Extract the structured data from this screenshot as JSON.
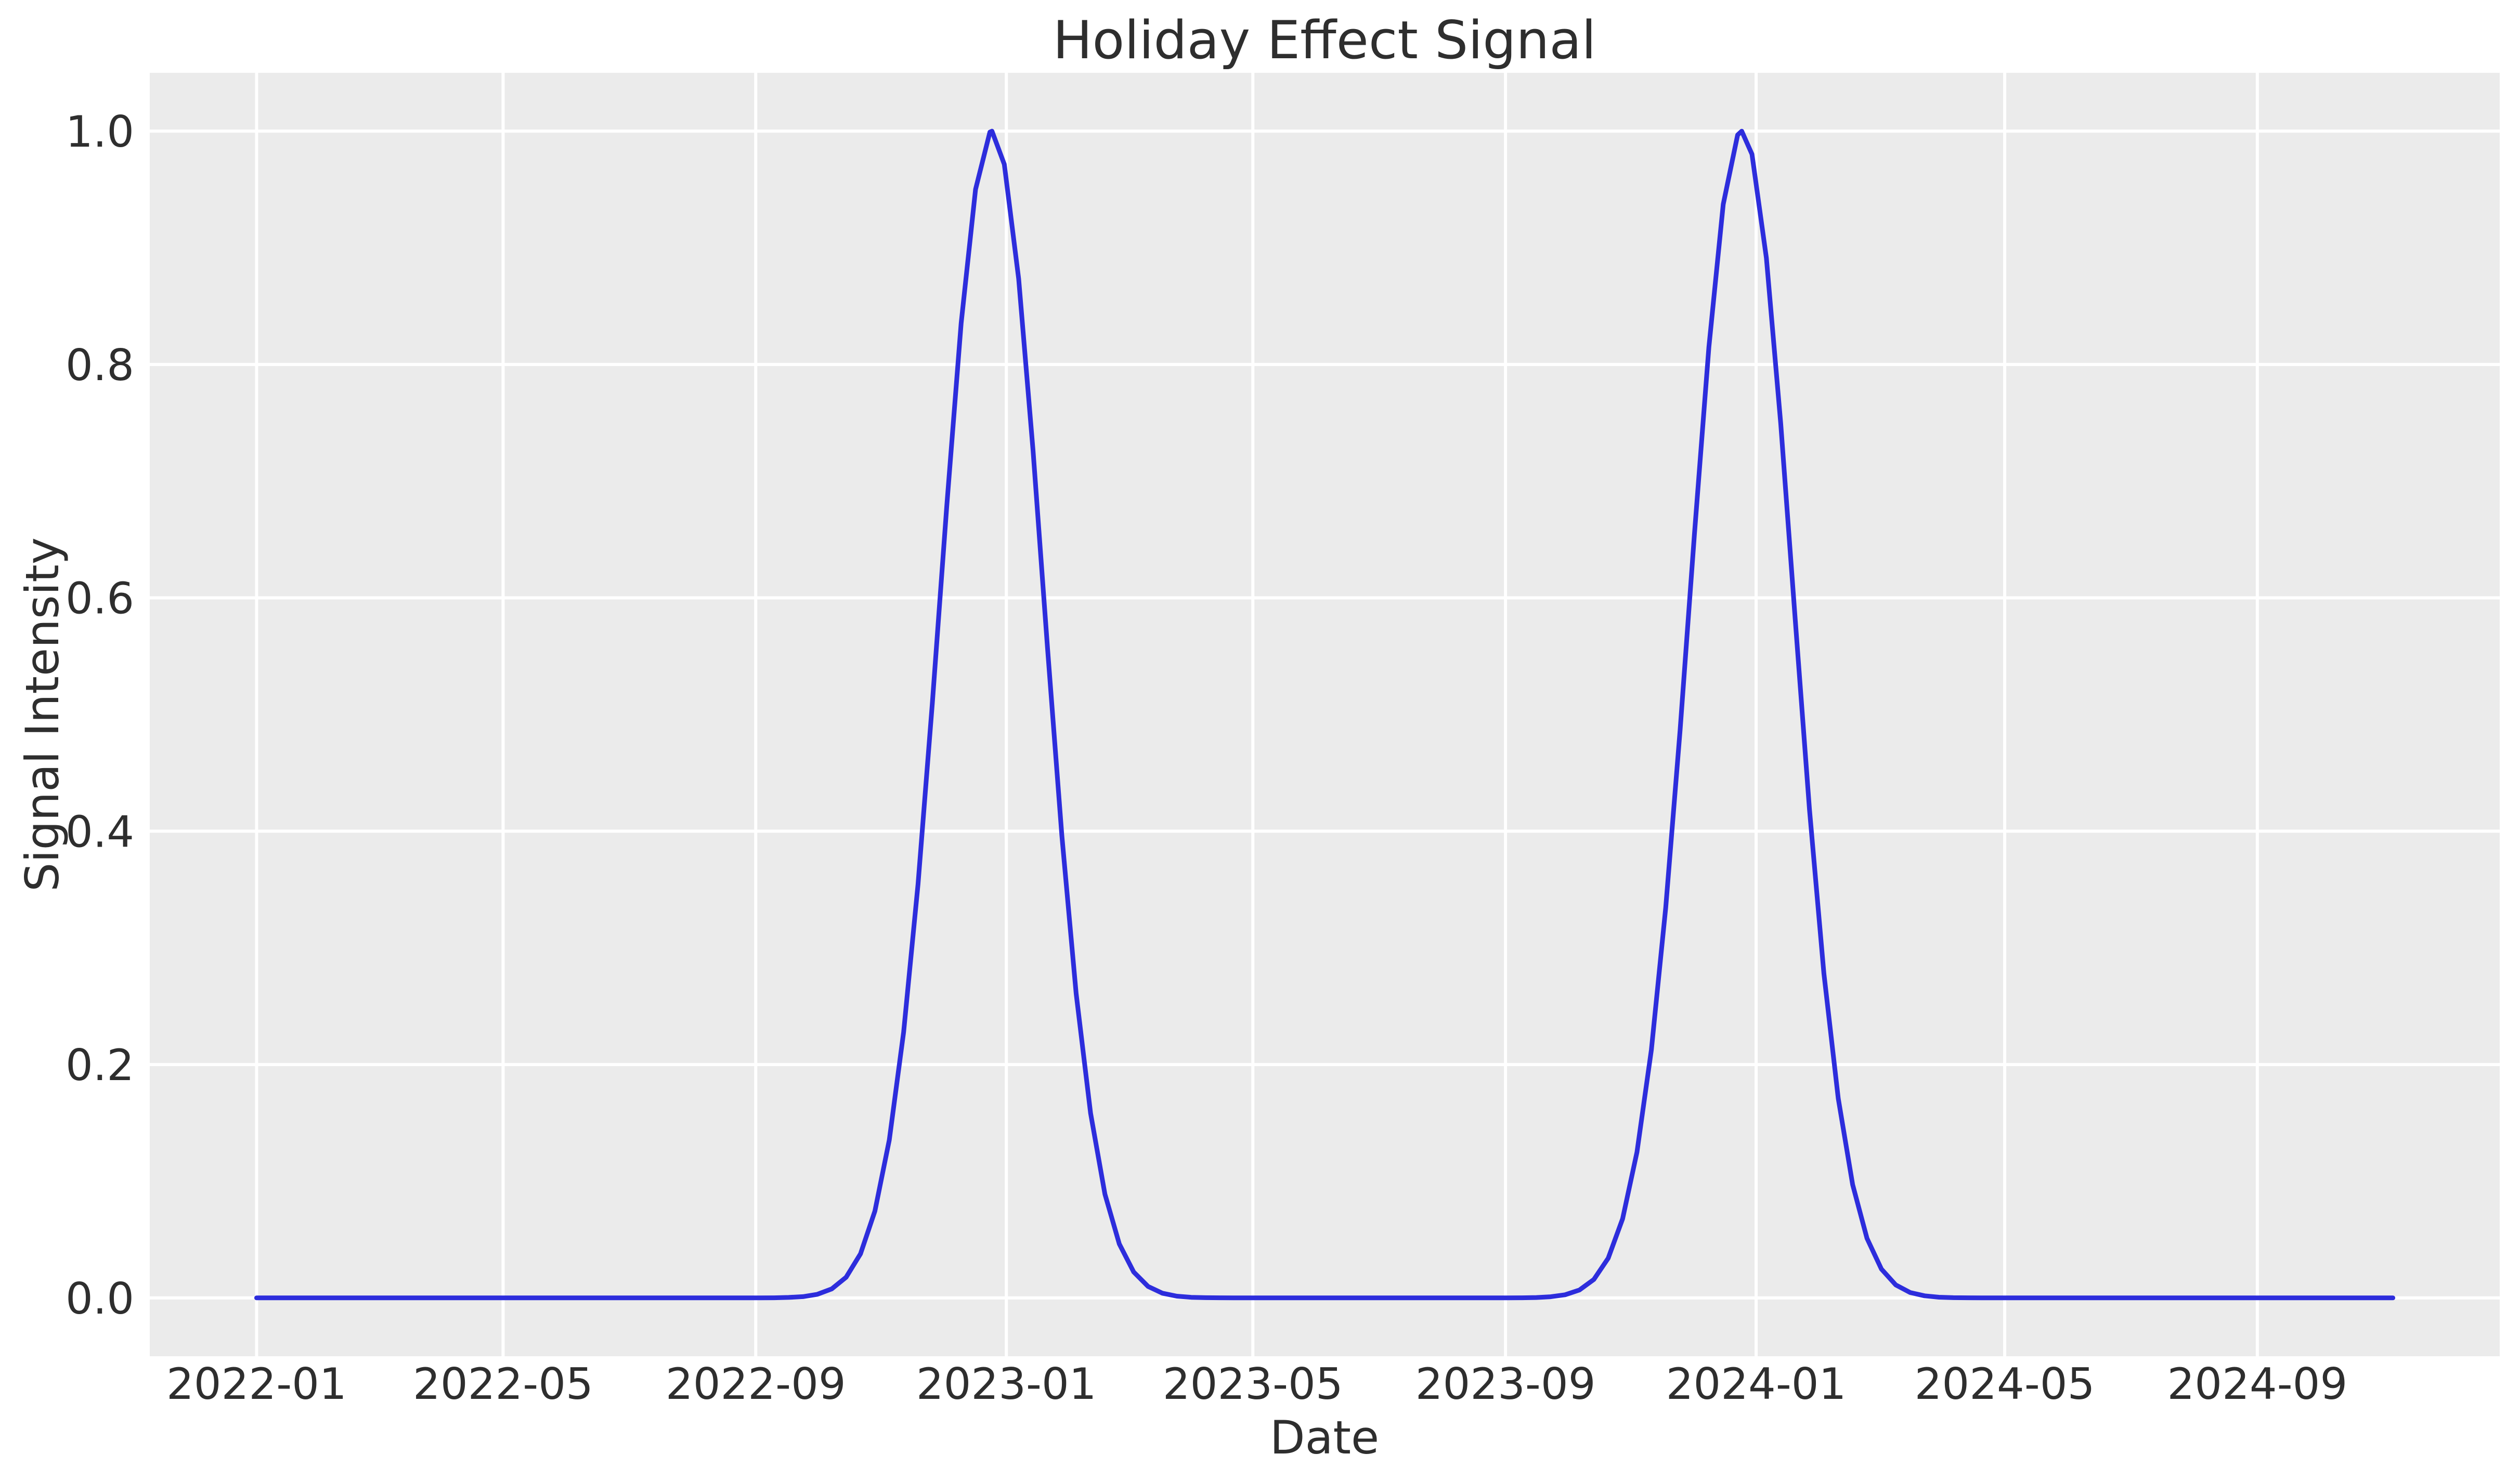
{
  "chart": {
    "title": "Holiday Effect Signal",
    "xlabel": "Date",
    "ylabel": "Signal Intensity"
  },
  "colors": {
    "figure_bg": "#ffffff",
    "plot_bg": "#ebebeb",
    "grid": "#ffffff",
    "text": "#2e2e2e",
    "line": "#2d2ddc"
  },
  "chart_data": {
    "type": "line",
    "title": "Holiday Effect Signal",
    "xlabel": "Date",
    "ylabel": "Signal Intensity",
    "grid": true,
    "legend": "none",
    "x_axis": {
      "unit": "days since 2022-01-01",
      "start_date": "2022-01-01",
      "end_date": "2024-11-06",
      "xlim_days": [
        -52,
        1092
      ],
      "ticks": [
        {
          "label": "2022-01",
          "day": 0
        },
        {
          "label": "2022-05",
          "day": 120
        },
        {
          "label": "2022-09",
          "day": 243
        },
        {
          "label": "2023-01",
          "day": 365
        },
        {
          "label": "2023-05",
          "day": 485
        },
        {
          "label": "2023-09",
          "day": 608
        },
        {
          "label": "2024-01",
          "day": 730
        },
        {
          "label": "2024-05",
          "day": 851
        },
        {
          "label": "2024-09",
          "day": 974
        }
      ]
    },
    "y_axis": {
      "ylim": [
        -0.05,
        1.05
      ],
      "ticks": [
        {
          "label": "0.0",
          "value": 0.0
        },
        {
          "label": "0.2",
          "value": 0.2
        },
        {
          "label": "0.4",
          "value": 0.4
        },
        {
          "label": "0.6",
          "value": 0.6
        },
        {
          "label": "0.8",
          "value": 0.8
        },
        {
          "label": "1.0",
          "value": 1.0
        }
      ]
    },
    "series": [
      {
        "name": "holiday-effect-signal",
        "color": "#2d2ddc",
        "baseline": 0.0,
        "amplitude": 1.0,
        "gaussian_sigma_days": 25,
        "peaks": [
          {
            "date": "2022-12-25",
            "value": 1.0
          },
          {
            "date": "2023-12-25",
            "value": 1.0
          }
        ],
        "points_day_value": [
          [
            0,
            0
          ],
          [
            7,
            0
          ],
          [
            14,
            0
          ],
          [
            21,
            0
          ],
          [
            28,
            0
          ],
          [
            35,
            0
          ],
          [
            42,
            0
          ],
          [
            49,
            0
          ],
          [
            56,
            0
          ],
          [
            63,
            0
          ],
          [
            70,
            0
          ],
          [
            77,
            0
          ],
          [
            84,
            0
          ],
          [
            91,
            0
          ],
          [
            98,
            0
          ],
          [
            105,
            0
          ],
          [
            112,
            0
          ],
          [
            119,
            0
          ],
          [
            126,
            0
          ],
          [
            133,
            0
          ],
          [
            140,
            0
          ],
          [
            147,
            0
          ],
          [
            154,
            0
          ],
          [
            161,
            0
          ],
          [
            168,
            0
          ],
          [
            175,
            0
          ],
          [
            182,
            0
          ],
          [
            189,
            0
          ],
          [
            196,
            0
          ],
          [
            203,
            0
          ],
          [
            210,
            0
          ],
          [
            217,
            0
          ],
          [
            224,
            0
          ],
          [
            231,
            0
          ],
          [
            238,
            0
          ],
          [
            245,
            0
          ],
          [
            252,
            0.0001
          ],
          [
            259,
            0.0004
          ],
          [
            266,
            0.0011
          ],
          [
            273,
            0.0031
          ],
          [
            280,
            0.0077
          ],
          [
            287,
            0.0177
          ],
          [
            294,
            0.0378
          ],
          [
            301,
            0.0743
          ],
          [
            308,
            0.1353
          ],
          [
            315,
            0.2278
          ],
          [
            322,
            0.3546
          ],
          [
            329,
            0.5103
          ],
          [
            336,
            0.679
          ],
          [
            343,
            0.8353
          ],
          [
            350,
            0.9501
          ],
          [
            357,
            0.9992
          ],
          [
            358,
            1.0
          ],
          [
            364,
            0.9716
          ],
          [
            371,
            0.8735
          ],
          [
            378,
            0.7261
          ],
          [
            385,
            0.5581
          ],
          [
            392,
            0.3966
          ],
          [
            399,
            0.2606
          ],
          [
            406,
            0.1583
          ],
          [
            413,
            0.0889
          ],
          [
            420,
            0.0462
          ],
          [
            427,
            0.0222
          ],
          [
            434,
            0.0098
          ],
          [
            441,
            0.004
          ],
          [
            448,
            0.0015
          ],
          [
            455,
            0.0005
          ],
          [
            462,
            0.0002
          ],
          [
            469,
            0.0001
          ],
          [
            476,
            0
          ],
          [
            483,
            0
          ],
          [
            490,
            0
          ],
          [
            497,
            0
          ],
          [
            504,
            0
          ],
          [
            511,
            0
          ],
          [
            518,
            0
          ],
          [
            525,
            0
          ],
          [
            532,
            0
          ],
          [
            539,
            0
          ],
          [
            546,
            0
          ],
          [
            553,
            0
          ],
          [
            560,
            0
          ],
          [
            567,
            0
          ],
          [
            574,
            0
          ],
          [
            581,
            0
          ],
          [
            588,
            0
          ],
          [
            595,
            0
          ],
          [
            602,
            0
          ],
          [
            609,
            0
          ],
          [
            616,
            0.0001
          ],
          [
            623,
            0.0003
          ],
          [
            630,
            0.001
          ],
          [
            637,
            0.0027
          ],
          [
            644,
            0.0068
          ],
          [
            651,
            0.0158
          ],
          [
            658,
            0.034
          ],
          [
            665,
            0.0678
          ],
          [
            672,
            0.1249
          ],
          [
            679,
            0.2125
          ],
          [
            686,
            0.3344
          ],
          [
            693,
            0.4868
          ],
          [
            700,
            0.655
          ],
          [
            707,
            0.8148
          ],
          [
            714,
            0.9373
          ],
          [
            721,
            0.9968
          ],
          [
            723,
            1.0
          ],
          [
            728,
            0.9802
          ],
          [
            735,
            0.8912
          ],
          [
            742,
            0.7492
          ],
          [
            749,
            0.5823
          ],
          [
            756,
            0.4184
          ],
          [
            763,
            0.278
          ],
          [
            770,
            0.1709
          ],
          [
            777,
            0.097
          ],
          [
            784,
            0.051
          ],
          [
            791,
            0.0247
          ],
          [
            798,
            0.0111
          ],
          [
            805,
            0.0046
          ],
          [
            812,
            0.0018
          ],
          [
            819,
            0.0006
          ],
          [
            826,
            0.0002
          ],
          [
            833,
            0.0001
          ],
          [
            840,
            0
          ],
          [
            847,
            0
          ],
          [
            854,
            0
          ],
          [
            861,
            0
          ],
          [
            868,
            0
          ],
          [
            875,
            0
          ],
          [
            882,
            0
          ],
          [
            889,
            0
          ],
          [
            896,
            0
          ],
          [
            903,
            0
          ],
          [
            910,
            0
          ],
          [
            917,
            0
          ],
          [
            924,
            0
          ],
          [
            931,
            0
          ],
          [
            938,
            0
          ],
          [
            945,
            0
          ],
          [
            952,
            0
          ],
          [
            959,
            0
          ],
          [
            966,
            0
          ],
          [
            973,
            0
          ],
          [
            980,
            0
          ],
          [
            987,
            0
          ],
          [
            994,
            0
          ],
          [
            1001,
            0
          ],
          [
            1008,
            0
          ],
          [
            1015,
            0
          ],
          [
            1022,
            0
          ],
          [
            1029,
            0
          ],
          [
            1036,
            0
          ],
          [
            1040,
            0
          ]
        ]
      }
    ]
  }
}
